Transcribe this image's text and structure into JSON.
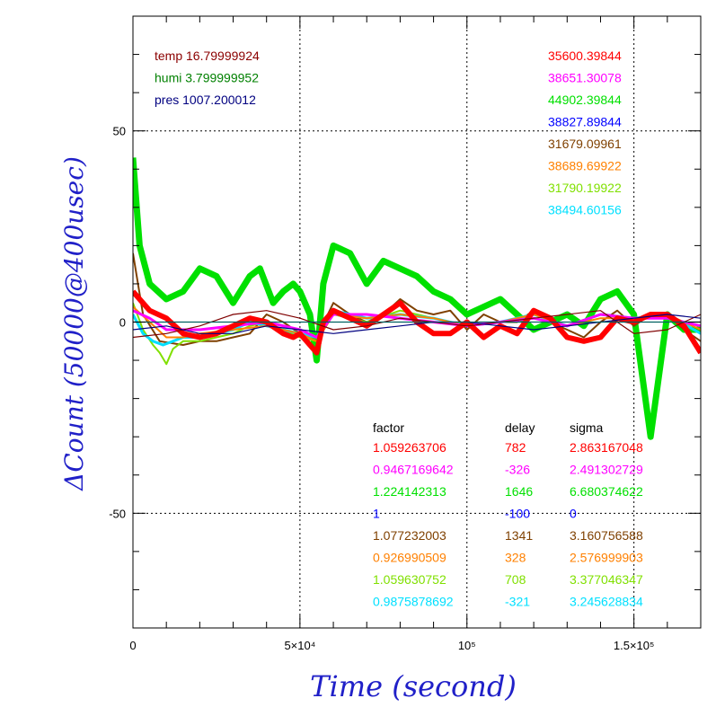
{
  "chart_data": {
    "type": "line",
    "xlabel": "Time (second)",
    "ylabel": "ΔCount (50000@400usec)",
    "xlim": [
      0,
      170000
    ],
    "ylim": [
      -80,
      80
    ],
    "x_ticks": [
      {
        "value": 0,
        "label": "0"
      },
      {
        "value": 50000,
        "label": "5×10⁴"
      },
      {
        "value": 100000,
        "label": "10⁵"
      },
      {
        "value": 150000,
        "label": "1.5×10⁵"
      }
    ],
    "y_ticks": [
      {
        "value": 50,
        "label": "50"
      },
      {
        "value": 0,
        "label": "0"
      },
      {
        "value": -50,
        "label": "-50"
      }
    ],
    "grid": true,
    "env": [
      {
        "text": "temp 16.79999924",
        "color": "#8b0000"
      },
      {
        "text": "humi 3.799999952",
        "color": "#008000"
      },
      {
        "text": "pres 1007.200012",
        "color": "#000080"
      }
    ],
    "means": [
      {
        "text": "35600.39844",
        "color": "#ff0000"
      },
      {
        "text": "38651.30078",
        "color": "#ff00ff"
      },
      {
        "text": "44902.39844",
        "color": "#00e000"
      },
      {
        "text": "38827.89844",
        "color": "#0000ff"
      },
      {
        "text": "31679.09961",
        "color": "#7f4000"
      },
      {
        "text": "38689.69922",
        "color": "#ff8000"
      },
      {
        "text": "31790.19922",
        "color": "#80e000"
      },
      {
        "text": "38494.60156",
        "color": "#00e0ff"
      }
    ],
    "table_headers": [
      "factor",
      "delay",
      "sigma"
    ],
    "table_rows": [
      {
        "factor": "1.059263706",
        "delay": "782",
        "sigma": "2.863167048",
        "color": "#ff0000"
      },
      {
        "factor": "0.9467169642",
        "delay": "-326",
        "sigma": "2.491302729",
        "color": "#ff00ff"
      },
      {
        "factor": "1.224142313",
        "delay": "1646",
        "sigma": "6.680374622",
        "color": "#00e000"
      },
      {
        "factor": "1",
        "delay": "-100",
        "sigma": "0",
        "color": "#0000ff"
      },
      {
        "factor": "1.077232003",
        "delay": "1341",
        "sigma": "3.160756588",
        "color": "#7f4000"
      },
      {
        "factor": "0.926990509",
        "delay": "328",
        "sigma": "2.576999903",
        "color": "#ff8000"
      },
      {
        "factor": "1.059630752",
        "delay": "708",
        "sigma": "3.377046347",
        "color": "#80e000"
      },
      {
        "factor": "0.9875878692",
        "delay": "-321",
        "sigma": "3.245628834",
        "color": "#00e0ff"
      }
    ],
    "series": [
      {
        "color": "#00e000",
        "width": 7,
        "x": [
          0,
          2000,
          5000,
          10000,
          15000,
          20000,
          25000,
          30000,
          35000,
          38000,
          42000,
          45000,
          48000,
          50000,
          53000,
          55000,
          57000,
          60000,
          65000,
          70000,
          75000,
          80000,
          85000,
          90000,
          95000,
          100000,
          105000,
          110000,
          115000,
          120000,
          125000,
          130000,
          135000,
          140000,
          145000,
          150000,
          155000,
          160000,
          165000,
          170000
        ],
        "y": [
          43,
          20,
          10,
          6,
          8,
          14,
          12,
          5,
          12,
          14,
          5,
          8,
          10,
          8,
          2,
          -10,
          10,
          20,
          18,
          10,
          16,
          14,
          12,
          8,
          6,
          2,
          4,
          6,
          2,
          -2,
          0,
          2,
          -1,
          6,
          8,
          2,
          -30,
          2,
          -2,
          -2
        ]
      },
      {
        "color": "#7f4000",
        "width": 2,
        "x": [
          0,
          3000,
          8000,
          15000,
          20000,
          25000,
          30000,
          35000,
          40000,
          45000,
          50000,
          55000,
          60000,
          65000,
          70000,
          75000,
          80000,
          85000,
          90000,
          95000,
          100000,
          105000,
          110000,
          115000,
          120000,
          125000,
          130000,
          135000,
          140000,
          145000,
          150000,
          155000,
          160000,
          165000,
          170000
        ],
        "y": [
          18,
          2,
          -5,
          -6,
          -5,
          -5,
          -4,
          -3,
          2,
          0,
          -3,
          -4,
          5,
          2,
          0,
          2,
          6,
          3,
          2,
          3,
          -2,
          2,
          0,
          0,
          3,
          0,
          -2,
          -4,
          0,
          3,
          -1,
          2,
          2,
          -2,
          -5
        ]
      },
      {
        "color": "#80e000",
        "width": 2,
        "x": [
          0,
          3000,
          6000,
          8000,
          10000,
          12000,
          15000,
          20000,
          25000,
          30000,
          35000,
          40000,
          45000,
          50000,
          55000,
          60000,
          70000,
          80000,
          90000,
          100000,
          110000,
          120000,
          130000,
          140000,
          150000,
          160000,
          170000
        ],
        "y": [
          5,
          -2,
          -6,
          -8,
          -11,
          -7,
          -5,
          -5,
          -4,
          -3,
          -1,
          0,
          -2,
          -4,
          -5,
          2,
          0,
          3,
          1,
          -1,
          0,
          2,
          -1,
          2,
          1,
          2,
          -3
        ]
      },
      {
        "color": "#00e0ff",
        "width": 3,
        "x": [
          0,
          3000,
          6000,
          9000,
          12000,
          15000,
          20000,
          25000,
          30000,
          35000,
          40000,
          45000,
          50000,
          55000,
          60000,
          70000,
          80000,
          90000,
          100000,
          110000,
          120000,
          130000,
          140000,
          150000,
          160000,
          170000
        ],
        "y": [
          2,
          -3,
          -5,
          -6,
          -5,
          -4,
          -4,
          -3,
          -2,
          0,
          -1,
          -2,
          -3,
          -4,
          3,
          1,
          2,
          1,
          -1,
          0,
          2,
          -1,
          2,
          1,
          2,
          -3
        ]
      },
      {
        "color": "#ff8000",
        "width": 2,
        "x": [
          0,
          5000,
          10000,
          15000,
          20000,
          30000,
          40000,
          50000,
          55000,
          60000,
          70000,
          80000,
          90000,
          100000,
          110000,
          120000,
          130000,
          140000,
          150000,
          160000,
          170000
        ],
        "y": [
          4,
          0,
          -4,
          -4,
          -3,
          -2,
          -1,
          -3,
          -5,
          2,
          1,
          2,
          1,
          -1,
          0,
          2,
          -1,
          1,
          1,
          2,
          -2
        ]
      },
      {
        "color": "#ff00ff",
        "width": 3,
        "x": [
          0,
          5000,
          10000,
          15000,
          20000,
          30000,
          40000,
          50000,
          55000,
          60000,
          70000,
          80000,
          90000,
          100000,
          110000,
          120000,
          130000,
          140000,
          150000,
          160000,
          170000
        ],
        "y": [
          3,
          1,
          -2,
          -2,
          -2,
          -1,
          0,
          -2,
          -4,
          2,
          2,
          1,
          0,
          -1,
          0,
          1,
          -1,
          2,
          1,
          1,
          -1
        ]
      },
      {
        "color": "#ff0000",
        "width": 6,
        "x": [
          0,
          2000,
          5000,
          10000,
          15000,
          20000,
          25000,
          30000,
          35000,
          40000,
          45000,
          48000,
          50000,
          53000,
          55000,
          57000,
          60000,
          65000,
          70000,
          75000,
          80000,
          85000,
          90000,
          95000,
          100000,
          105000,
          110000,
          115000,
          120000,
          125000,
          130000,
          135000,
          140000,
          145000,
          150000,
          155000,
          160000,
          165000,
          170000
        ],
        "y": [
          8,
          6,
          3,
          1,
          -3,
          -4,
          -3,
          -1,
          1,
          0,
          -3,
          -4,
          -3,
          -6,
          -8,
          0,
          3,
          1,
          -1,
          2,
          5,
          0,
          -3,
          -3,
          0,
          -4,
          -1,
          -3,
          3,
          1,
          -4,
          -5,
          -4,
          1,
          0,
          2,
          2,
          -1,
          -8
        ]
      },
      {
        "color": "#7f0000",
        "width": 1.2,
        "x": [
          0,
          10000,
          20000,
          30000,
          40000,
          50000,
          60000,
          70000,
          80000,
          90000,
          100000,
          110000,
          120000,
          130000,
          140000,
          150000,
          160000,
          170000
        ],
        "y": [
          -4,
          -3,
          -1,
          2,
          3,
          1,
          -2,
          -1,
          1,
          0,
          -1,
          0,
          1,
          2,
          3,
          -3,
          -2,
          2
        ]
      },
      {
        "color": "#000080",
        "width": 1.2,
        "x": [
          0,
          10000,
          20000,
          30000,
          40000,
          50000,
          60000,
          70000,
          80000,
          90000,
          100000,
          110000,
          120000,
          130000,
          140000,
          150000,
          160000,
          170000
        ],
        "y": [
          -2,
          -1,
          -3,
          -3,
          -1,
          -2,
          -3,
          -2,
          -1,
          0,
          0,
          -1,
          -2,
          -1,
          0,
          1,
          2,
          1
        ]
      },
      {
        "color": "#006060",
        "width": 1.2,
        "x": [
          0,
          170000
        ],
        "y": [
          0,
          0
        ]
      }
    ]
  }
}
